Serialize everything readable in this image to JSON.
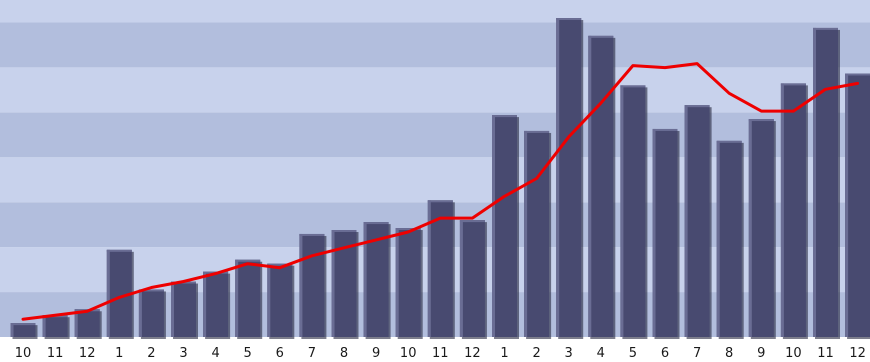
{
  "chart_data": {
    "type": "bar",
    "title": "",
    "xlabel": "",
    "ylabel": "",
    "grid": true,
    "legend": "none",
    "ylim": [
      0,
      16
    ],
    "categories": [
      "10",
      "11",
      "12",
      "1",
      "2",
      "3",
      "4",
      "5",
      "6",
      "7",
      "8",
      "9",
      "10",
      "11",
      "12",
      "1",
      "2",
      "3",
      "4",
      "5",
      "6",
      "7",
      "8",
      "9",
      "10",
      "11",
      "12"
    ],
    "series": [
      {
        "type": "bar",
        "values": [
          0.7,
          1.1,
          1.4,
          4.4,
          2.4,
          2.8,
          3.3,
          3.9,
          3.7,
          5.2,
          5.4,
          5.8,
          5.5,
          6.9,
          5.9,
          11.2,
          10.4,
          16.1,
          15.2,
          12.7,
          10.5,
          11.7,
          9.9,
          11.0,
          12.8,
          15.6,
          13.3
        ]
      },
      {
        "type": "line",
        "values": [
          0.9,
          1.1,
          1.3,
          2.0,
          2.5,
          2.8,
          3.2,
          3.7,
          3.5,
          4.1,
          4.5,
          4.9,
          5.3,
          6.0,
          6.0,
          7.1,
          8.0,
          10.1,
          11.8,
          13.7,
          13.6,
          13.8,
          12.3,
          11.4,
          11.4,
          12.5,
          12.8
        ]
      }
    ],
    "colors": {
      "bar_fill": "#484a70",
      "bar_highlight": "#6a6d94",
      "bar_shadow": "#26283f",
      "line": "#ee0000",
      "band_dark": "#b2bedd",
      "band_light": "#c8d2ec",
      "axis_bg": "#ffffff"
    }
  }
}
